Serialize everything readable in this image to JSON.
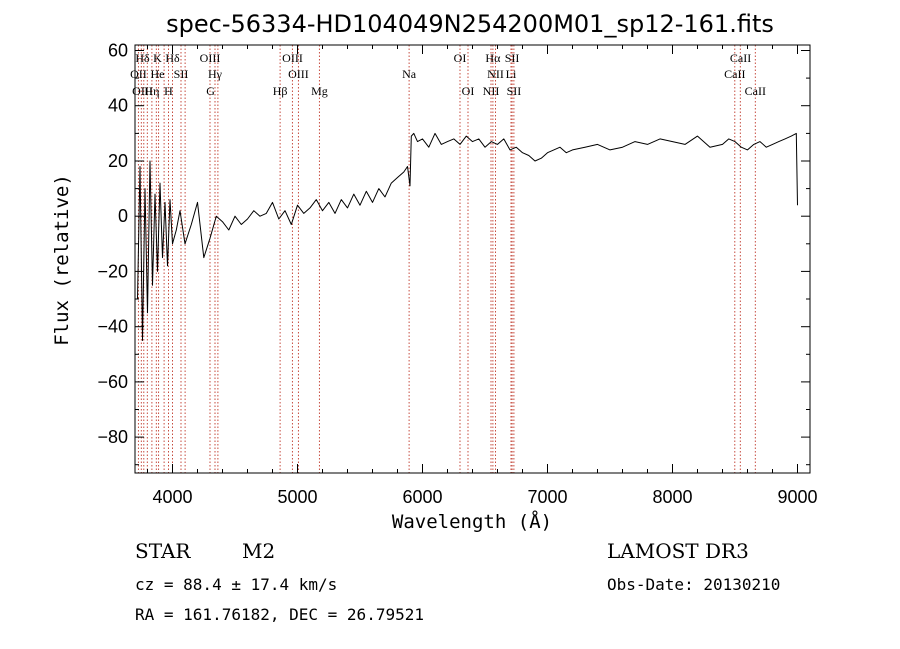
{
  "chart_data": {
    "type": "line",
    "title": "spec-56334-HD104049N254200M01_sp12-161.fits",
    "xlabel": "Wavelength (Å)",
    "ylabel": "Flux (relative)",
    "xlim": [
      3700,
      9100
    ],
    "ylim": [
      -93,
      62
    ],
    "xticks": [
      4000,
      5000,
      6000,
      7000,
      8000,
      9000
    ],
    "yticks": [
      -80,
      -60,
      -40,
      -20,
      0,
      20,
      40,
      60
    ],
    "xtick_labels": [
      "4000",
      "5000",
      "6000",
      "7000",
      "8000",
      "9000"
    ],
    "ytick_labels": [
      "−80",
      "−60",
      "−40",
      "−20",
      "0",
      "20",
      "40",
      "60"
    ],
    "line_color": "#000000",
    "marker_color": "#c0392b",
    "series": [
      {
        "name": "flux",
        "x": [
          3720,
          3740,
          3760,
          3780,
          3800,
          3820,
          3840,
          3860,
          3880,
          3900,
          3920,
          3940,
          3960,
          3980,
          4000,
          4030,
          4060,
          4100,
          4150,
          4200,
          4250,
          4300,
          4350,
          4400,
          4450,
          4500,
          4550,
          4600,
          4650,
          4700,
          4750,
          4800,
          4850,
          4900,
          4950,
          5000,
          5050,
          5100,
          5150,
          5200,
          5250,
          5300,
          5350,
          5400,
          5450,
          5500,
          5550,
          5600,
          5650,
          5700,
          5750,
          5800,
          5850,
          5880,
          5900,
          5910,
          5930,
          5960,
          6000,
          6050,
          6100,
          6150,
          6200,
          6250,
          6300,
          6350,
          6400,
          6450,
          6500,
          6550,
          6600,
          6650,
          6700,
          6750,
          6800,
          6850,
          6900,
          6950,
          7000,
          7050,
          7100,
          7150,
          7200,
          7300,
          7400,
          7500,
          7600,
          7700,
          7800,
          7900,
          8000,
          8100,
          8200,
          8300,
          8400,
          8450,
          8500,
          8550,
          8600,
          8650,
          8700,
          8750,
          8800,
          8850,
          8900,
          8950,
          8990,
          9000
        ],
        "y": [
          -30,
          18,
          -45,
          10,
          -35,
          20,
          -25,
          8,
          -20,
          12,
          -15,
          5,
          -18,
          6,
          -10,
          -5,
          2,
          -10,
          -3,
          5,
          -15,
          -8,
          0,
          -2,
          -5,
          0,
          -3,
          -1,
          2,
          0,
          1,
          5,
          -1,
          2,
          -3,
          4,
          1,
          3,
          6,
          2,
          5,
          1,
          6,
          3,
          8,
          4,
          9,
          5,
          10,
          7,
          12,
          14,
          16,
          18,
          11,
          29,
          30,
          27,
          28,
          25,
          30,
          26,
          27,
          28,
          26,
          29,
          27,
          28,
          25,
          27,
          26,
          28,
          24,
          25,
          23,
          22,
          20,
          21,
          23,
          24,
          25,
          23,
          24,
          25,
          26,
          24,
          25,
          27,
          26,
          28,
          27,
          26,
          29,
          25,
          26,
          28,
          27,
          25,
          24,
          26,
          27,
          25,
          26,
          27,
          28,
          29,
          30,
          4
        ]
      }
    ],
    "line_markers": [
      {
        "label": "Hδ",
        "x": 3760,
        "row": 1
      },
      {
        "label": "K",
        "x": 3880,
        "row": 1
      },
      {
        "label": "Hδ",
        "x": 4000,
        "row": 1
      },
      {
        "label": "OIII",
        "x": 4300,
        "row": 1
      },
      {
        "label": "OIII",
        "x": 4960,
        "row": 1
      },
      {
        "label": "OI",
        "x": 6300,
        "row": 1
      },
      {
        "label": "Hα",
        "x": 6563,
        "row": 1
      },
      {
        "label": "SII",
        "x": 6717,
        "row": 1
      },
      {
        "label": "CaII",
        "x": 8545,
        "row": 1
      },
      {
        "label": "OII",
        "x": 3727,
        "row": 2
      },
      {
        "label": "He",
        "x": 3880,
        "row": 2
      },
      {
        "label": "SII",
        "x": 4068,
        "row": 2
      },
      {
        "label": "Hγ",
        "x": 4340,
        "row": 2
      },
      {
        "label": "OIII",
        "x": 5007,
        "row": 2
      },
      {
        "label": "Na",
        "x": 5893,
        "row": 2
      },
      {
        "label": "NII",
        "x": 6584,
        "row": 2
      },
      {
        "label": "Li",
        "x": 6708,
        "row": 2
      },
      {
        "label": "CaII",
        "x": 8498,
        "row": 2
      },
      {
        "label": "OIII",
        "x": 3760,
        "row": 3
      },
      {
        "label": "Hη",
        "x": 3835,
        "row": 3
      },
      {
        "label": "H",
        "x": 3968,
        "row": 3
      },
      {
        "label": "G",
        "x": 4305,
        "row": 3
      },
      {
        "label": "Hβ",
        "x": 4861,
        "row": 3
      },
      {
        "label": "Mg",
        "x": 5175,
        "row": 3
      },
      {
        "label": "OI",
        "x": 6364,
        "row": 3
      },
      {
        "label": "NII",
        "x": 6548,
        "row": 3
      },
      {
        "label": "SII",
        "x": 6731,
        "row": 3
      },
      {
        "label": "CaII",
        "x": 8662,
        "row": 3
      }
    ],
    "vlines": [
      3727,
      3750,
      3770,
      3798,
      3835,
      3870,
      3889,
      3933,
      3968,
      4000,
      4068,
      4101,
      4300,
      4340,
      4363,
      4861,
      4959,
      5007,
      5175,
      5893,
      6300,
      6364,
      6548,
      6563,
      6584,
      6708,
      6717,
      6731,
      8498,
      8542,
      8662
    ]
  },
  "footer": {
    "object_class": "STAR",
    "subclass": "M2",
    "survey": "LAMOST DR3",
    "redshift": "cz = 88.4 ± 17.4 km/s",
    "obs_date": "Obs-Date: 20130210",
    "coords": "RA = 161.76182, DEC =  26.79521"
  }
}
